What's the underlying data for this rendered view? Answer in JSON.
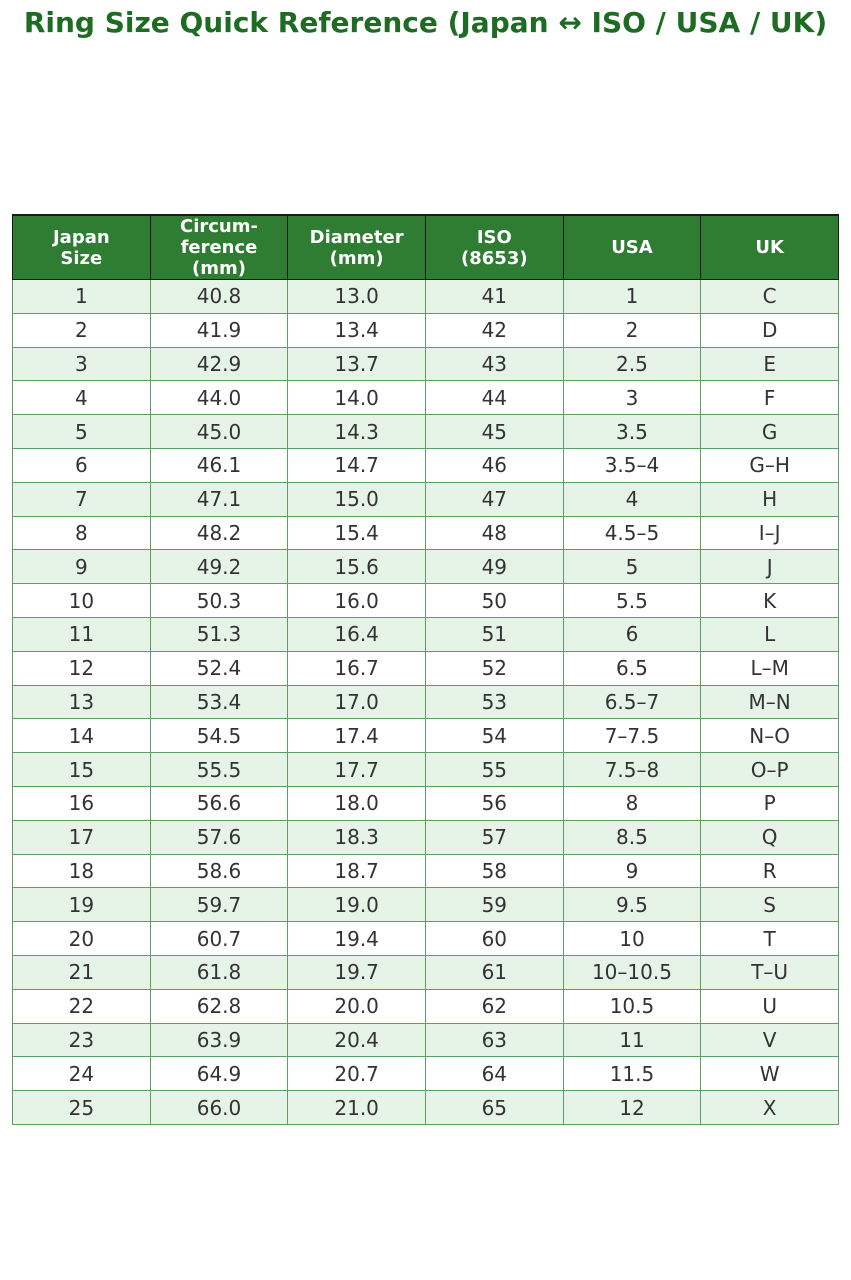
{
  "title": "Ring Size Quick Reference (Japan ↔ ISO / USA / UK)",
  "table": {
    "columns": [
      "Japan\nSize",
      "Circum-\nference\n(mm)",
      "Diameter\n(mm)",
      "ISO\n(8653)",
      "USA",
      "UK"
    ],
    "rows": [
      [
        "1",
        "40.8",
        "13.0",
        "41",
        "1",
        "C"
      ],
      [
        "2",
        "41.9",
        "13.4",
        "42",
        "2",
        "D"
      ],
      [
        "3",
        "42.9",
        "13.7",
        "43",
        "2.5",
        "E"
      ],
      [
        "4",
        "44.0",
        "14.0",
        "44",
        "3",
        "F"
      ],
      [
        "5",
        "45.0",
        "14.3",
        "45",
        "3.5",
        "G"
      ],
      [
        "6",
        "46.1",
        "14.7",
        "46",
        "3.5–4",
        "G–H"
      ],
      [
        "7",
        "47.1",
        "15.0",
        "47",
        "4",
        "H"
      ],
      [
        "8",
        "48.2",
        "15.4",
        "48",
        "4.5–5",
        "I–J"
      ],
      [
        "9",
        "49.2",
        "15.6",
        "49",
        "5",
        "J"
      ],
      [
        "10",
        "50.3",
        "16.0",
        "50",
        "5.5",
        "K"
      ],
      [
        "11",
        "51.3",
        "16.4",
        "51",
        "6",
        "L"
      ],
      [
        "12",
        "52.4",
        "16.7",
        "52",
        "6.5",
        "L–M"
      ],
      [
        "13",
        "53.4",
        "17.0",
        "53",
        "6.5–7",
        "M–N"
      ],
      [
        "14",
        "54.5",
        "17.4",
        "54",
        "7–7.5",
        "N–O"
      ],
      [
        "15",
        "55.5",
        "17.7",
        "55",
        "7.5–8",
        "O–P"
      ],
      [
        "16",
        "56.6",
        "18.0",
        "56",
        "8",
        "P"
      ],
      [
        "17",
        "57.6",
        "18.3",
        "57",
        "8.5",
        "Q"
      ],
      [
        "18",
        "58.6",
        "18.7",
        "58",
        "9",
        "R"
      ],
      [
        "19",
        "59.7",
        "19.0",
        "59",
        "9.5",
        "S"
      ],
      [
        "20",
        "60.7",
        "19.4",
        "60",
        "10",
        "T"
      ],
      [
        "21",
        "61.8",
        "19.7",
        "61",
        "10–10.5",
        "T–U"
      ],
      [
        "22",
        "62.8",
        "20.0",
        "62",
        "10.5",
        "U"
      ],
      [
        "23",
        "63.9",
        "20.4",
        "63",
        "11",
        "V"
      ],
      [
        "24",
        "64.9",
        "20.7",
        "64",
        "11.5",
        "W"
      ],
      [
        "25",
        "66.0",
        "21.0",
        "65",
        "12",
        "X"
      ]
    ]
  }
}
